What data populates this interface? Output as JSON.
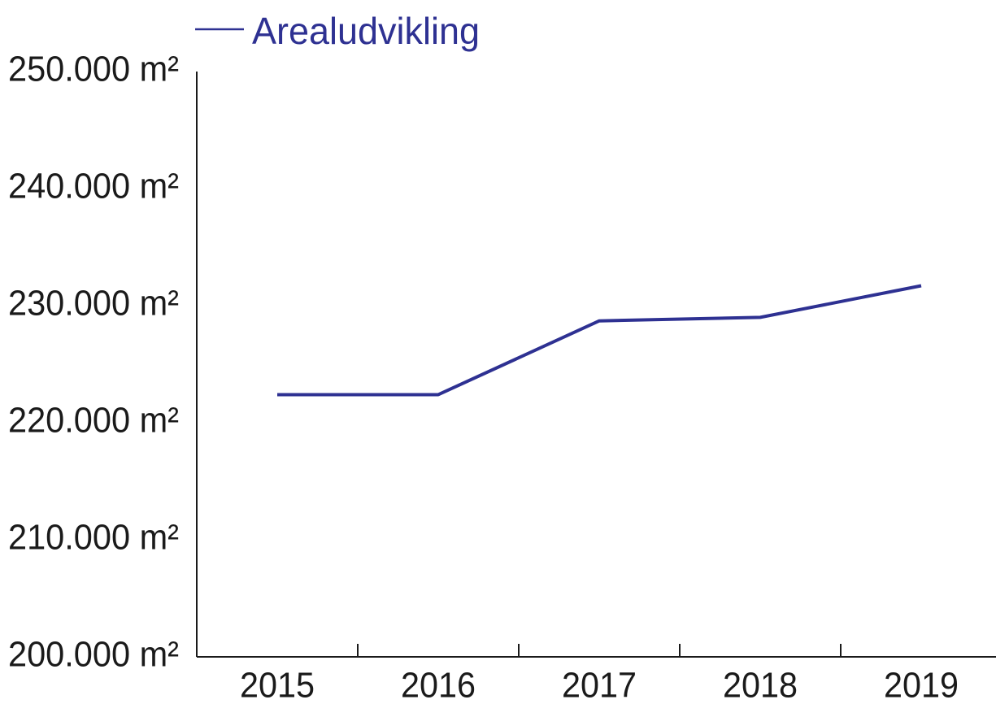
{
  "chart_data": {
    "type": "line",
    "categories": [
      "2015",
      "2016",
      "2017",
      "2018",
      "2019"
    ],
    "series": [
      {
        "name": "Arealudvikling",
        "color": "#2e3192",
        "values": [
          222400,
          222400,
          228700,
          229000,
          231700
        ]
      }
    ],
    "ylim": [
      200000,
      250000
    ],
    "yticks": [
      {
        "value": 200000,
        "label": "200.000 m²"
      },
      {
        "value": 210000,
        "label": "210.000 m²"
      },
      {
        "value": 220000,
        "label": "220.000 m²"
      },
      {
        "value": 230000,
        "label": "230.000 m²"
      },
      {
        "value": 240000,
        "label": "240.000 m²"
      },
      {
        "value": 250000,
        "label": "250.000 m²"
      }
    ],
    "grid": false
  }
}
